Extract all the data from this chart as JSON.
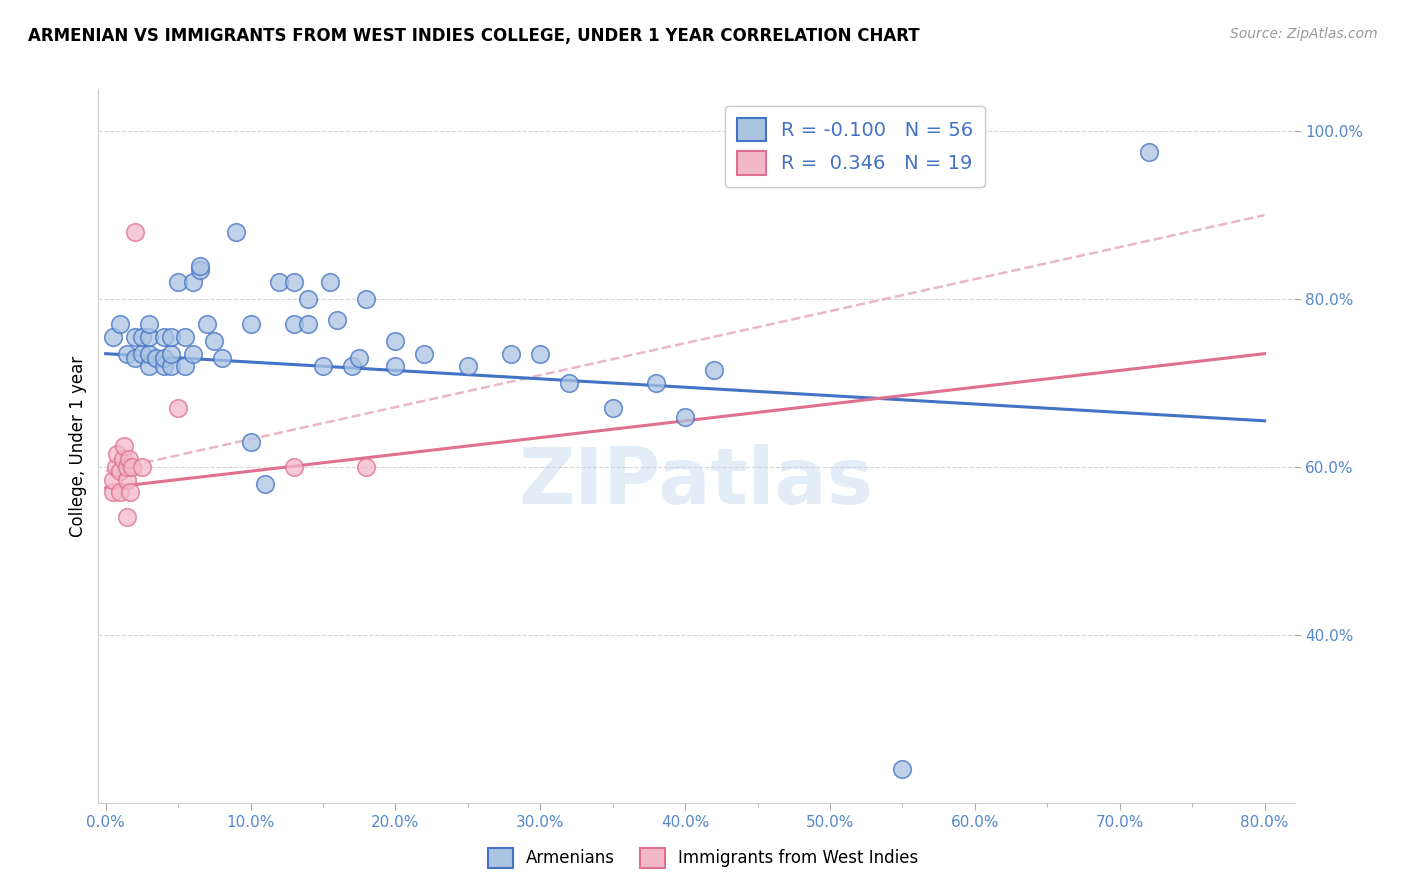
{
  "title": "ARMENIAN VS IMMIGRANTS FROM WEST INDIES COLLEGE, UNDER 1 YEAR CORRELATION CHART",
  "source": "Source: ZipAtlas.com",
  "ylabel": "College, Under 1 year",
  "x_tick_labels": [
    "0.0%",
    "",
    "10.0%",
    "",
    "20.0%",
    "",
    "30.0%",
    "",
    "40.0%",
    "",
    "50.0%",
    "",
    "60.0%",
    "",
    "70.0%",
    "",
    "80.0%"
  ],
  "x_tick_values": [
    0.0,
    0.05,
    0.1,
    0.15,
    0.2,
    0.25,
    0.3,
    0.35,
    0.4,
    0.45,
    0.5,
    0.55,
    0.6,
    0.65,
    0.7,
    0.75,
    0.8
  ],
  "y_tick_labels": [
    "40.0%",
    "60.0%",
    "80.0%",
    "100.0%"
  ],
  "y_tick_values": [
    0.4,
    0.6,
    0.8,
    1.0
  ],
  "xlim": [
    -0.005,
    0.82
  ],
  "ylim": [
    0.2,
    1.05
  ],
  "legend_r_blue": "-0.100",
  "legend_n_blue": "56",
  "legend_r_pink": "0.346",
  "legend_n_pink": "19",
  "legend_label_blue": "Armenians",
  "legend_label_pink": "Immigrants from West Indies",
  "blue_color": "#aac4e2",
  "pink_color": "#f2b8ca",
  "line_blue": "#4472c4",
  "line_pink": "#e07090",
  "line_dash_color": "#e8b0c0",
  "watermark": "ZIPatlas",
  "blue_x": [
    0.005,
    0.01,
    0.015,
    0.02,
    0.02,
    0.025,
    0.025,
    0.03,
    0.03,
    0.03,
    0.03,
    0.035,
    0.04,
    0.04,
    0.04,
    0.045,
    0.045,
    0.045,
    0.05,
    0.055,
    0.055,
    0.06,
    0.06,
    0.065,
    0.065,
    0.07,
    0.075,
    0.08,
    0.09,
    0.1,
    0.1,
    0.11,
    0.12,
    0.13,
    0.13,
    0.14,
    0.14,
    0.15,
    0.155,
    0.16,
    0.17,
    0.175,
    0.18,
    0.2,
    0.2,
    0.22,
    0.25,
    0.28,
    0.3,
    0.32,
    0.35,
    0.38,
    0.4,
    0.42,
    0.55,
    0.72
  ],
  "blue_y": [
    0.755,
    0.77,
    0.735,
    0.73,
    0.755,
    0.735,
    0.755,
    0.72,
    0.735,
    0.755,
    0.77,
    0.73,
    0.72,
    0.73,
    0.755,
    0.72,
    0.735,
    0.755,
    0.82,
    0.72,
    0.755,
    0.735,
    0.82,
    0.835,
    0.84,
    0.77,
    0.75,
    0.73,
    0.88,
    0.63,
    0.77,
    0.58,
    0.82,
    0.82,
    0.77,
    0.77,
    0.8,
    0.72,
    0.82,
    0.775,
    0.72,
    0.73,
    0.8,
    0.72,
    0.75,
    0.735,
    0.72,
    0.735,
    0.735,
    0.7,
    0.67,
    0.7,
    0.66,
    0.715,
    0.24,
    0.975
  ],
  "pink_x": [
    0.005,
    0.005,
    0.007,
    0.008,
    0.01,
    0.01,
    0.012,
    0.013,
    0.015,
    0.015,
    0.015,
    0.016,
    0.017,
    0.018,
    0.02,
    0.025,
    0.05,
    0.13,
    0.18
  ],
  "pink_y": [
    0.57,
    0.585,
    0.6,
    0.615,
    0.57,
    0.595,
    0.61,
    0.625,
    0.585,
    0.6,
    0.54,
    0.61,
    0.57,
    0.6,
    0.88,
    0.6,
    0.67,
    0.6,
    0.6
  ],
  "blue_trend_x": [
    0.0,
    0.8
  ],
  "blue_trend_y": [
    0.735,
    0.655
  ],
  "pink_trend_x": [
    0.0,
    0.8
  ],
  "pink_trend_y": [
    0.575,
    0.735
  ],
  "diag_trend_x": [
    0.0,
    0.8
  ],
  "diag_trend_y": [
    0.595,
    0.9
  ]
}
